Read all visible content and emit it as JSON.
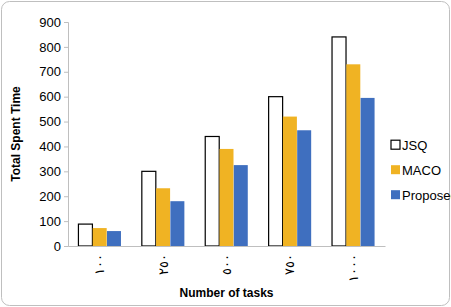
{
  "chart_data": {
    "type": "bar",
    "x_label": "Number of tasks",
    "y_label": "Total Spent Time",
    "categories": [
      "١٠٠",
      "٢٥٠",
      "٥٠٠",
      "٧٥٠",
      "١٠٠٠"
    ],
    "series": [
      {
        "name": "JSQ",
        "color": "#ffffff",
        "values": [
          88,
          300,
          440,
          600,
          840
        ]
      },
      {
        "name": "MACO",
        "color": "#f0b323",
        "values": [
          72,
          232,
          390,
          520,
          730
        ]
      },
      {
        "name": "Proposed",
        "color": "#3f6fbf",
        "values": [
          60,
          180,
          325,
          465,
          595
        ]
      }
    ],
    "ylim": [
      0,
      900
    ],
    "yticks": [
      0,
      100,
      200,
      300,
      400,
      500,
      600,
      700,
      800,
      900
    ],
    "grid": false,
    "legend": "right"
  }
}
